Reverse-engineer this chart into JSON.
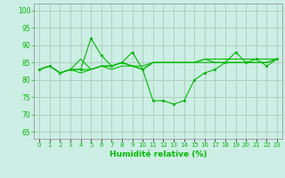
{
  "background_color": "#cceee4",
  "grid_color": "#aaccbb",
  "line_color": "#00bb00",
  "marker_color": "#00bb00",
  "xlabel": "Humidité relative (%)",
  "ylabel_ticks": [
    65,
    70,
    75,
    80,
    85,
    90,
    95,
    100
  ],
  "xlim": [
    -0.5,
    23.5
  ],
  "ylim": [
    63,
    102
  ],
  "lines": [
    [
      83,
      84,
      82,
      83,
      83,
      92,
      87,
      84,
      85,
      88,
      83,
      74,
      74,
      73,
      74,
      80,
      82,
      83,
      85,
      88,
      85,
      86,
      84,
      86
    ],
    [
      83,
      84,
      82,
      83,
      82,
      83,
      84,
      83,
      84,
      84,
      84,
      85,
      85,
      85,
      85,
      85,
      85,
      85,
      85,
      85,
      85,
      85,
      85,
      86
    ],
    [
      83,
      84,
      82,
      83,
      86,
      83,
      84,
      84,
      85,
      84,
      83,
      85,
      85,
      85,
      85,
      85,
      86,
      86,
      86,
      86,
      86,
      86,
      86,
      86
    ],
    [
      83,
      84,
      82,
      83,
      83,
      83,
      84,
      84,
      85,
      84,
      83,
      85,
      85,
      85,
      85,
      85,
      86,
      85,
      85,
      85,
      85,
      85,
      85,
      86
    ]
  ],
  "has_markers": [
    true,
    false,
    false,
    false
  ],
  "xtick_labels": [
    "0",
    "1",
    "2",
    "3",
    "4",
    "5",
    "6",
    "7",
    "8",
    "9",
    "10",
    "11",
    "12",
    "13",
    "14",
    "15",
    "16",
    "17",
    "18",
    "19",
    "20",
    "21",
    "22",
    "23"
  ]
}
